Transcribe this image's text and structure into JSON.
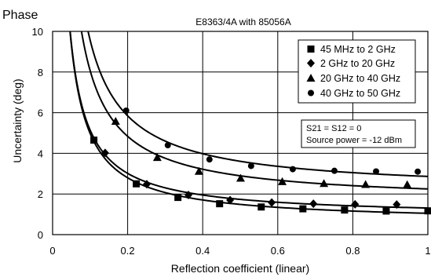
{
  "chart_data": {
    "type": "line",
    "corner_label": "Phase",
    "title": "E8363/4A  with 85056A",
    "xlabel": "Reflection coefficient (linear)",
    "ylabel": "Uncertainty (deg)",
    "xlim": [
      0,
      1
    ],
    "ylim": [
      0,
      10
    ],
    "x_ticks": [
      0,
      0.2,
      0.4,
      0.6,
      0.8,
      1
    ],
    "x_tick_labels": [
      "0",
      "0.2",
      "0.4",
      "0.6",
      "0.8",
      "1"
    ],
    "y_ticks": [
      0,
      2,
      4,
      6,
      8,
      10
    ],
    "y_tick_labels": [
      "0",
      "2",
      "4",
      "6",
      "8",
      "10"
    ],
    "grid": true,
    "legend_position": "top-right",
    "annotation_lines": [
      "S21 = S12 = 0",
      "Source power = -12 dBm"
    ],
    "series": [
      {
        "name": "45 MHz to 2 GHz",
        "marker": "square",
        "x": [
          0.11,
          0.223,
          0.334,
          0.445,
          0.556,
          0.667,
          0.778,
          0.889,
          1.0
        ],
        "y": [
          4.65,
          2.5,
          1.83,
          1.52,
          1.36,
          1.27,
          1.21,
          1.16,
          1.17
        ]
      },
      {
        "name": "2 GHz to 20 GHz",
        "marker": "diamond",
        "x": [
          0.14,
          0.251,
          0.362,
          0.473,
          0.584,
          0.695,
          0.806,
          0.917
        ],
        "y": [
          4.02,
          2.48,
          1.95,
          1.7,
          1.58,
          1.52,
          1.49,
          1.48
        ]
      },
      {
        "name": "20 GHz to 40 GHz",
        "marker": "triangle",
        "x": [
          0.168,
          0.279,
          0.39,
          0.501,
          0.612,
          0.723,
          0.834,
          0.945
        ],
        "y": [
          5.58,
          3.8,
          3.12,
          2.78,
          2.61,
          2.52,
          2.47,
          2.46
        ]
      },
      {
        "name": "40 GHz to 50 GHz",
        "marker": "circle",
        "x": [
          0.196,
          0.307,
          0.418,
          0.529,
          0.64,
          0.751,
          0.862,
          0.973
        ],
        "y": [
          6.1,
          4.4,
          3.7,
          3.38,
          3.22,
          3.14,
          3.11,
          3.1
        ]
      }
    ]
  }
}
